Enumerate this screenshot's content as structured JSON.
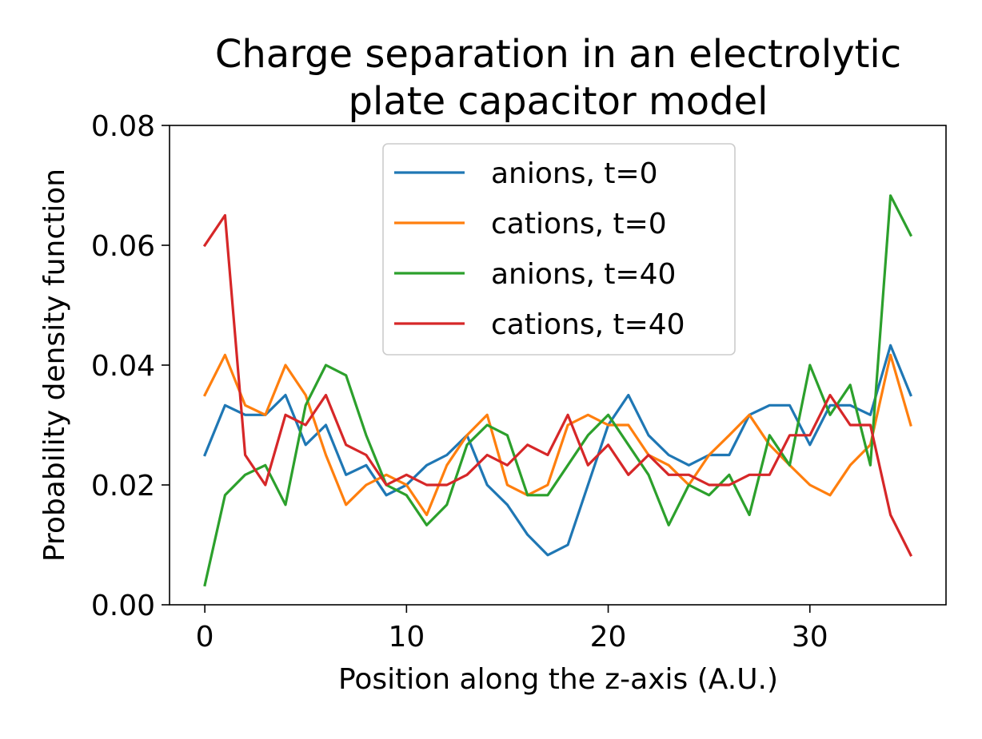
{
  "chart_data": {
    "type": "line",
    "title": "Charge separation in an electrolytic plate capacitor model",
    "title_lines": [
      "Charge separation in an electrolytic",
      "plate capacitor model"
    ],
    "xlabel": "Position along the z-axis (A.U.)",
    "ylabel": "Probability density function",
    "xlim": [
      -1.75,
      36.75
    ],
    "ylim": [
      0.0,
      0.08
    ],
    "xticks": [
      0,
      10,
      20,
      30
    ],
    "xtick_labels": [
      "0",
      "10",
      "20",
      "30"
    ],
    "yticks": [
      0.0,
      0.02,
      0.04,
      0.06,
      0.08
    ],
    "ytick_labels": [
      "0.00",
      "0.02",
      "0.04",
      "0.06",
      "0.08"
    ],
    "grid": false,
    "legend": "upper-center",
    "x": [
      0,
      1,
      2,
      3,
      4,
      5,
      6,
      7,
      8,
      9,
      10,
      11,
      12,
      13,
      14,
      15,
      16,
      17,
      18,
      19,
      20,
      21,
      22,
      23,
      24,
      25,
      26,
      27,
      28,
      29,
      30,
      31,
      32,
      33,
      34,
      35
    ],
    "series": [
      {
        "name": "anions, t=0",
        "color": "#1f77b4",
        "values": [
          0.025,
          0.0333,
          0.0317,
          0.0317,
          0.035,
          0.0267,
          0.03,
          0.0217,
          0.0233,
          0.0183,
          0.02,
          0.0233,
          0.025,
          0.0283,
          0.02,
          0.0167,
          0.0117,
          0.0083,
          0.01,
          0.02,
          0.03,
          0.035,
          0.0283,
          0.025,
          0.0233,
          0.025,
          0.025,
          0.0317,
          0.0333,
          0.0333,
          0.0267,
          0.0333,
          0.0333,
          0.0317,
          0.0433,
          0.035
        ]
      },
      {
        "name": "cations, t=0",
        "color": "#ff7f0e",
        "values": [
          0.035,
          0.0417,
          0.0333,
          0.0317,
          0.04,
          0.035,
          0.025,
          0.0167,
          0.02,
          0.0217,
          0.02,
          0.015,
          0.0233,
          0.0283,
          0.0317,
          0.02,
          0.0183,
          0.02,
          0.03,
          0.0317,
          0.03,
          0.03,
          0.025,
          0.0233,
          0.02,
          0.025,
          0.0283,
          0.0317,
          0.0267,
          0.0233,
          0.02,
          0.0183,
          0.0233,
          0.0267,
          0.0417,
          0.03
        ]
      },
      {
        "name": "anions, t=40",
        "color": "#2ca02c",
        "values": [
          0.0033,
          0.0183,
          0.0217,
          0.0233,
          0.0167,
          0.0333,
          0.04,
          0.0383,
          0.0283,
          0.02,
          0.0183,
          0.0133,
          0.0167,
          0.0267,
          0.03,
          0.0283,
          0.0183,
          0.0183,
          0.0233,
          0.0283,
          0.0317,
          0.0267,
          0.0217,
          0.0133,
          0.02,
          0.0183,
          0.0217,
          0.015,
          0.0283,
          0.0233,
          0.04,
          0.0317,
          0.0367,
          0.0233,
          0.0683,
          0.0617
        ]
      },
      {
        "name": "cations, t=40",
        "color": "#d62728",
        "values": [
          0.06,
          0.065,
          0.025,
          0.02,
          0.0317,
          0.03,
          0.035,
          0.0267,
          0.025,
          0.02,
          0.0217,
          0.02,
          0.02,
          0.0217,
          0.025,
          0.0233,
          0.0267,
          0.025,
          0.0317,
          0.0233,
          0.0267,
          0.0217,
          0.025,
          0.0217,
          0.0217,
          0.02,
          0.02,
          0.0217,
          0.0217,
          0.0283,
          0.0283,
          0.035,
          0.03,
          0.03,
          0.015,
          0.0083
        ]
      }
    ]
  }
}
